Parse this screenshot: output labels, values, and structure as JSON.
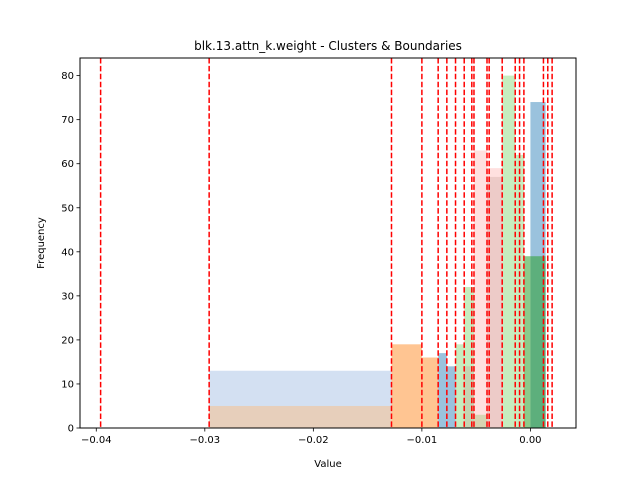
{
  "chart_data": {
    "type": "bar",
    "title": "blk.13.attn_k.weight - Clusters & Boundaries",
    "xlabel": "Value",
    "ylabel": "Frequency",
    "xlim": [
      -0.0415,
      0.0042
    ],
    "ylim": [
      0,
      84
    ],
    "xticks": [
      -0.04,
      -0.03,
      -0.02,
      -0.01,
      0.0
    ],
    "xtick_labels": [
      "−0.04",
      "−0.03",
      "−0.02",
      "−0.01",
      "0.00"
    ],
    "yticks": [
      0,
      10,
      20,
      30,
      40,
      50,
      60,
      70,
      80
    ],
    "grid": false,
    "series": [
      {
        "color": "#aec7e8",
        "alpha": 0.55,
        "bins": [
          {
            "x0": -0.0296,
            "x1": -0.0128,
            "y": 13
          }
        ]
      },
      {
        "color": "#ffbb78",
        "alpha": 0.45,
        "bins": [
          {
            "x0": -0.0296,
            "x1": -0.0128,
            "y": 5
          }
        ]
      },
      {
        "color": "#ff7f0e",
        "alpha": 0.45,
        "bins": [
          {
            "x0": -0.0128,
            "x1": -0.01,
            "y": 19
          },
          {
            "x0": -0.01,
            "x1": -0.0085,
            "y": 16
          }
        ]
      },
      {
        "color": "#1f77b4",
        "alpha": 0.45,
        "bins": [
          {
            "x0": -0.0085,
            "x1": -0.0077,
            "y": 17
          },
          {
            "x0": -0.0077,
            "x1": -0.0069,
            "y": 14
          },
          {
            "x0": 0.0,
            "x1": 0.0014,
            "y": 74
          }
        ]
      },
      {
        "color": "#98df8a",
        "alpha": 0.55,
        "bins": [
          {
            "x0": -0.0069,
            "x1": -0.0061,
            "y": 19
          },
          {
            "x0": -0.0061,
            "x1": -0.0052,
            "y": 32
          },
          {
            "x0": -0.0052,
            "x1": -0.004,
            "y": 3
          },
          {
            "x0": -0.0026,
            "x1": -0.0014,
            "y": 80
          },
          {
            "x0": -0.0014,
            "x1": -0.0006,
            "y": 62
          }
        ]
      },
      {
        "color": "#ff9896",
        "alpha": 0.3,
        "bins": [
          {
            "x0": -0.0052,
            "x1": -0.004,
            "y": 63
          },
          {
            "x0": -0.004,
            "x1": -0.0026,
            "y": 59
          }
        ]
      },
      {
        "color": "#c49c94",
        "alpha": 0.3,
        "bins": [
          {
            "x0": -0.0061,
            "x1": -0.0052,
            "y": 14
          },
          {
            "x0": -0.004,
            "x1": -0.0026,
            "y": 57
          }
        ]
      },
      {
        "color": "#2ca02c",
        "alpha": 0.55,
        "bins": [
          {
            "x0": -0.0006,
            "x1": 0.0,
            "y": 39
          },
          {
            "x0": 0.0,
            "x1": 0.0014,
            "y": 39
          }
        ]
      }
    ],
    "boundaries": [
      -0.0396,
      -0.0296,
      -0.0128,
      -0.01,
      -0.0085,
      -0.0077,
      -0.0069,
      -0.0061,
      -0.0054,
      -0.0052,
      -0.004,
      -0.0038,
      -0.0026,
      -0.0014,
      -0.001,
      -0.0006,
      0.0012,
      0.0016,
      0.002
    ]
  }
}
